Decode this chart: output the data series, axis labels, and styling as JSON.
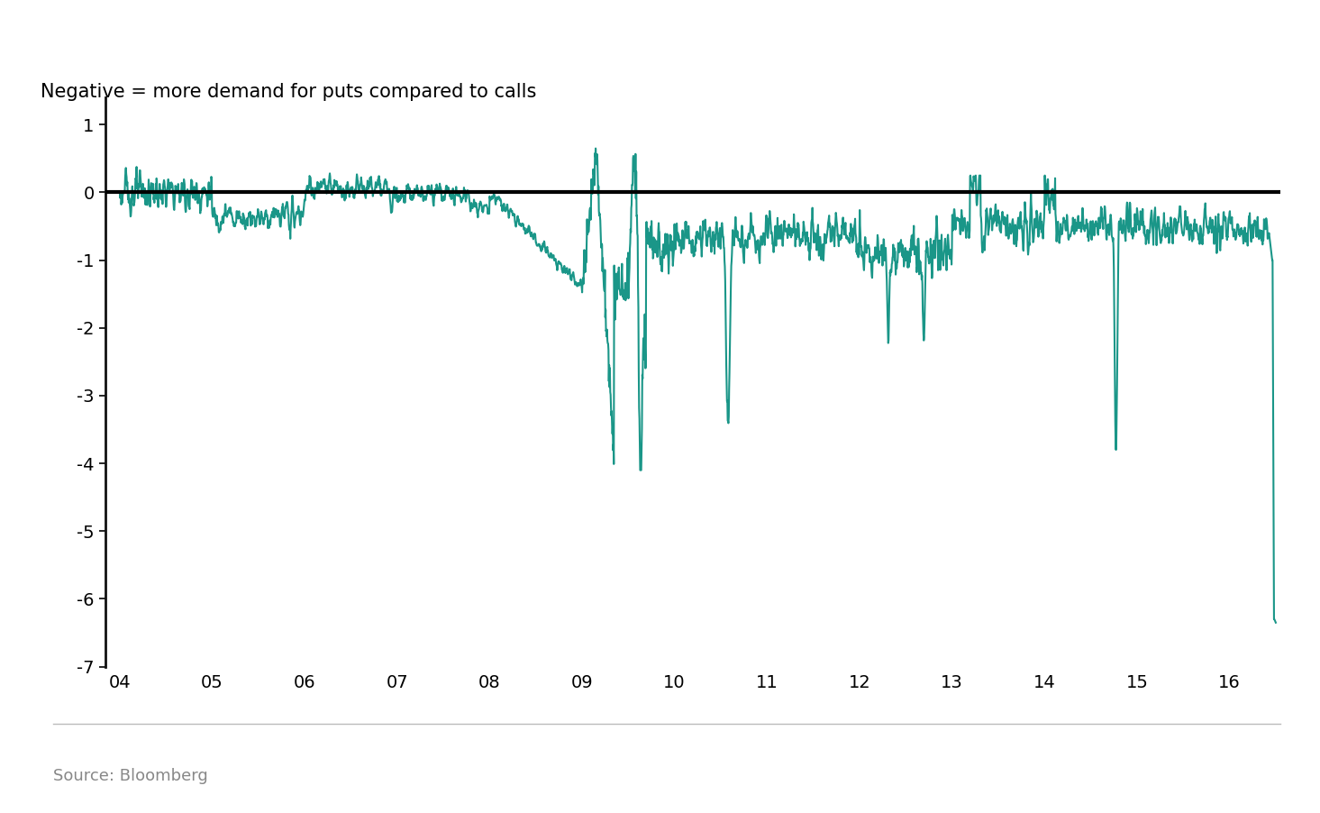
{
  "title": "Negative = more demand for puts compared to calls",
  "source": "Source: Bloomberg",
  "line_color": "#1a9688",
  "zero_line_color": "#000000",
  "background_color": "#ffffff",
  "ylim": [
    -7,
    1.4
  ],
  "yticks": [
    1,
    0,
    -1,
    -2,
    -3,
    -4,
    -5,
    -6,
    -7
  ],
  "xtick_labels": [
    "04",
    "05",
    "06",
    "07",
    "08",
    "09",
    "10",
    "11",
    "12",
    "13",
    "14",
    "15",
    "16"
  ],
  "title_fontsize": 15,
  "source_fontsize": 13,
  "line_width": 1.5
}
